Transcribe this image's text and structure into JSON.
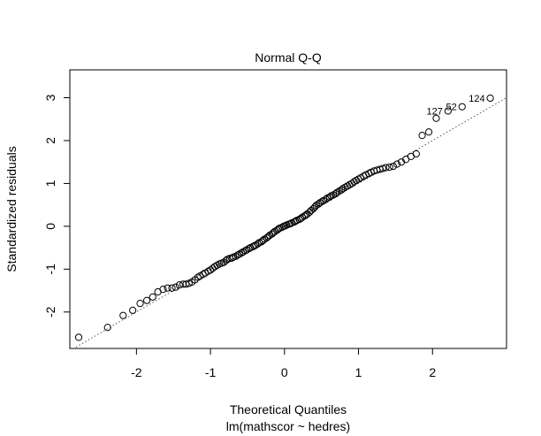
{
  "chart_data": {
    "type": "scatter",
    "title": "Normal Q-Q",
    "xlabel": "Theoretical Quantiles",
    "xlabel_sub": "lm(mathscor ~ hedres)",
    "ylabel": "Standardized residuals",
    "xlim": [
      -2.9,
      3.0
    ],
    "ylim": [
      -2.85,
      3.65
    ],
    "xticks": [
      -2,
      -1,
      0,
      1,
      2
    ],
    "yticks": [
      -2,
      -1,
      0,
      1,
      2,
      3
    ],
    "reference_line": {
      "x": [
        -2.9,
        3.0
      ],
      "y": [
        -2.9,
        3.0
      ],
      "style": "dotted"
    },
    "labeled_points": [
      {
        "label": "124",
        "x": 2.78,
        "y": 2.99
      },
      {
        "label": "52",
        "x": 2.4,
        "y": 2.79
      },
      {
        "label": "127",
        "x": 2.21,
        "y": 2.69
      }
    ],
    "points": [
      [
        -2.78,
        -2.59
      ],
      [
        -2.39,
        -2.36
      ],
      [
        -2.18,
        -2.08
      ],
      [
        -2.05,
        -1.96
      ],
      [
        -1.95,
        -1.8
      ],
      [
        -1.86,
        -1.73
      ],
      [
        -1.78,
        -1.65
      ],
      [
        -1.71,
        -1.53
      ],
      [
        -1.64,
        -1.47
      ],
      [
        -1.58,
        -1.44
      ],
      [
        -1.52,
        -1.44
      ],
      [
        -1.47,
        -1.42
      ],
      [
        -1.42,
        -1.37
      ],
      [
        -1.37,
        -1.35
      ],
      [
        -1.33,
        -1.35
      ],
      [
        -1.29,
        -1.33
      ],
      [
        -1.25,
        -1.3
      ],
      [
        -1.21,
        -1.25
      ],
      [
        -1.17,
        -1.19
      ],
      [
        -1.14,
        -1.16
      ],
      [
        -1.1,
        -1.12
      ],
      [
        -1.07,
        -1.09
      ],
      [
        -1.03,
        -1.05
      ],
      [
        -1.0,
        -1.02
      ],
      [
        -0.97,
        -0.98
      ],
      [
        -0.94,
        -0.94
      ],
      [
        -0.91,
        -0.91
      ],
      [
        -0.88,
        -0.88
      ],
      [
        -0.85,
        -0.86
      ],
      [
        -0.82,
        -0.84
      ],
      [
        -0.79,
        -0.8
      ],
      [
        -0.77,
        -0.77
      ],
      [
        -0.74,
        -0.75
      ],
      [
        -0.71,
        -0.74
      ],
      [
        -0.69,
        -0.72
      ],
      [
        -0.66,
        -0.7
      ],
      [
        -0.63,
        -0.67
      ],
      [
        -0.61,
        -0.65
      ],
      [
        -0.58,
        -0.62
      ],
      [
        -0.56,
        -0.6
      ],
      [
        -0.53,
        -0.57
      ],
      [
        -0.51,
        -0.55
      ],
      [
        -0.48,
        -0.52
      ],
      [
        -0.46,
        -0.5
      ],
      [
        -0.43,
        -0.48
      ],
      [
        -0.41,
        -0.46
      ],
      [
        -0.39,
        -0.44
      ],
      [
        -0.36,
        -0.41
      ],
      [
        -0.34,
        -0.38
      ],
      [
        -0.31,
        -0.36
      ],
      [
        -0.29,
        -0.33
      ],
      [
        -0.27,
        -0.3
      ],
      [
        -0.24,
        -0.27
      ],
      [
        -0.22,
        -0.24
      ],
      [
        -0.2,
        -0.21
      ],
      [
        -0.17,
        -0.18
      ],
      [
        -0.15,
        -0.15
      ],
      [
        -0.13,
        -0.12
      ],
      [
        -0.1,
        -0.09
      ],
      [
        -0.08,
        -0.06
      ],
      [
        -0.06,
        -0.04
      ],
      [
        -0.03,
        -0.02
      ],
      [
        -0.01,
        0.0
      ],
      [
        0.01,
        0.01
      ],
      [
        0.03,
        0.03
      ],
      [
        0.06,
        0.05
      ],
      [
        0.08,
        0.06
      ],
      [
        0.1,
        0.08
      ],
      [
        0.13,
        0.1
      ],
      [
        0.15,
        0.12
      ],
      [
        0.17,
        0.14
      ],
      [
        0.2,
        0.16
      ],
      [
        0.22,
        0.18
      ],
      [
        0.24,
        0.21
      ],
      [
        0.27,
        0.24
      ],
      [
        0.29,
        0.26
      ],
      [
        0.31,
        0.29
      ],
      [
        0.34,
        0.33
      ],
      [
        0.36,
        0.37
      ],
      [
        0.39,
        0.41
      ],
      [
        0.41,
        0.45
      ],
      [
        0.43,
        0.49
      ],
      [
        0.46,
        0.52
      ],
      [
        0.48,
        0.55
      ],
      [
        0.51,
        0.58
      ],
      [
        0.53,
        0.6
      ],
      [
        0.56,
        0.63
      ],
      [
        0.58,
        0.66
      ],
      [
        0.61,
        0.68
      ],
      [
        0.63,
        0.71
      ],
      [
        0.66,
        0.73
      ],
      [
        0.69,
        0.76
      ],
      [
        0.71,
        0.79
      ],
      [
        0.74,
        0.82
      ],
      [
        0.77,
        0.85
      ],
      [
        0.79,
        0.88
      ],
      [
        0.82,
        0.91
      ],
      [
        0.85,
        0.94
      ],
      [
        0.88,
        0.97
      ],
      [
        0.91,
        1.0
      ],
      [
        0.94,
        1.04
      ],
      [
        0.97,
        1.07
      ],
      [
        1.0,
        1.1
      ],
      [
        1.03,
        1.13
      ],
      [
        1.07,
        1.17
      ],
      [
        1.1,
        1.2
      ],
      [
        1.14,
        1.23
      ],
      [
        1.17,
        1.26
      ],
      [
        1.21,
        1.29
      ],
      [
        1.25,
        1.31
      ],
      [
        1.29,
        1.33
      ],
      [
        1.33,
        1.35
      ],
      [
        1.37,
        1.37
      ],
      [
        1.42,
        1.38
      ],
      [
        1.47,
        1.4
      ],
      [
        1.52,
        1.45
      ],
      [
        1.58,
        1.5
      ],
      [
        1.64,
        1.56
      ],
      [
        1.71,
        1.63
      ],
      [
        1.78,
        1.69
      ],
      [
        1.86,
        2.12
      ],
      [
        1.95,
        2.2
      ],
      [
        2.05,
        2.52
      ]
    ]
  }
}
